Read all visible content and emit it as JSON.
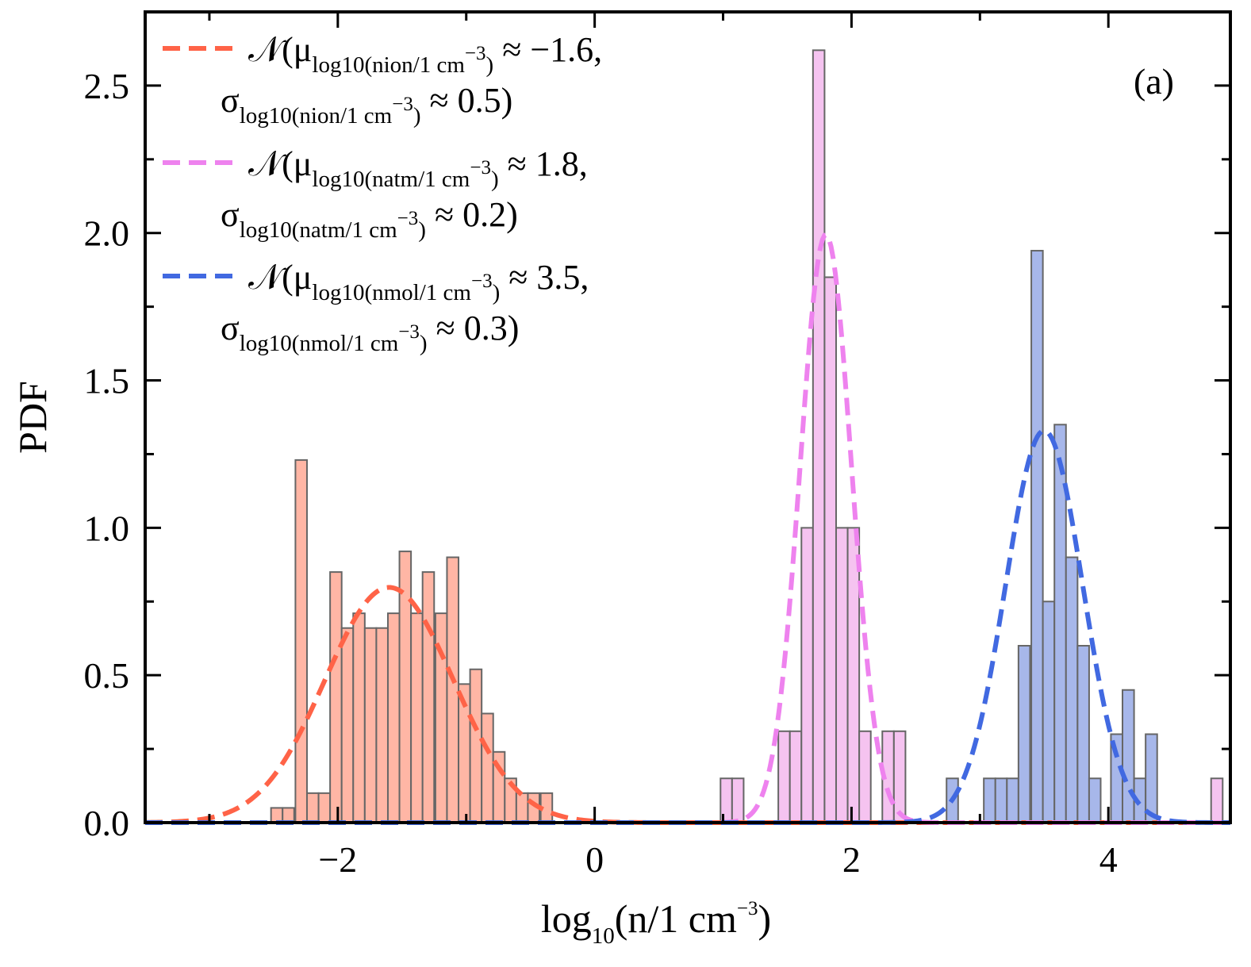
{
  "chart_data": {
    "type": "bar",
    "subtype": "histogram-with-gaussian-fits",
    "panel_label": "(a)",
    "xlabel": {
      "base": "log",
      "sub": "10",
      "main": "(n/1 cm",
      "sup": "−3",
      "close": ")"
    },
    "ylabel": "PDF",
    "xlim": [
      -3.5,
      4.95
    ],
    "ylim": [
      0,
      2.75
    ],
    "x_ticks": [
      -2,
      0,
      2,
      4
    ],
    "x_tick_labels": [
      "−2",
      "0",
      "2",
      "4"
    ],
    "y_ticks": [
      0.0,
      0.5,
      1.0,
      1.5,
      2.0,
      2.5
    ],
    "y_tick_labels": [
      "0.0",
      "0.5",
      "1.0",
      "1.5",
      "2.0",
      "2.5"
    ],
    "legend_position": "top-left",
    "series": [
      {
        "key": "ion",
        "color": "#ff6347",
        "fill": "#ffb6a5",
        "gaussian": {
          "mu": -1.6,
          "sigma": 0.5
        },
        "legend_line1": {
          "prefix": "𝒩(μ",
          "sub": "log10(nion/1 cm",
          "sub_sup": "−3",
          "sub_close": ")",
          "suffix": " ≈ −1.6,"
        },
        "legend_line2": {
          "prefix": "σ",
          "sub": "log10(nion/1 cm",
          "sub_sup": "−3",
          "sub_close": ")",
          "suffix": " ≈ 0.5)"
        },
        "bin_width": 0.09,
        "bins": [
          [
            -2.52,
            0.05
          ],
          [
            -2.43,
            0.05
          ],
          [
            -2.33,
            1.23
          ],
          [
            -2.24,
            0.1
          ],
          [
            -2.15,
            0.1
          ],
          [
            -2.06,
            0.85
          ],
          [
            -1.97,
            0.66
          ],
          [
            -1.88,
            0.71
          ],
          [
            -1.79,
            0.66
          ],
          [
            -1.7,
            0.66
          ],
          [
            -1.61,
            0.71
          ],
          [
            -1.52,
            0.92
          ],
          [
            -1.43,
            0.71
          ],
          [
            -1.34,
            0.85
          ],
          [
            -1.24,
            0.71
          ],
          [
            -1.15,
            0.9
          ],
          [
            -1.06,
            0.47
          ],
          [
            -0.97,
            0.52
          ],
          [
            -0.88,
            0.37
          ],
          [
            -0.79,
            0.24
          ],
          [
            -0.7,
            0.15
          ],
          [
            -0.61,
            0.1
          ],
          [
            -0.52,
            0.1
          ],
          [
            -0.42,
            0.1
          ]
        ]
      },
      {
        "key": "atm",
        "color": "#ee82ee",
        "fill": "#f5c3f0",
        "gaussian": {
          "mu": 1.8,
          "sigma": 0.2
        },
        "legend_line1": {
          "prefix": "𝒩(μ",
          "sub": "log10(natm/1 cm",
          "sub_sup": "−3",
          "sub_close": ")",
          "suffix": " ≈ 1.8,"
        },
        "legend_line2": {
          "prefix": "σ",
          "sub": "log10(natm/1 cm",
          "sub_sup": "−3",
          "sub_close": ")",
          "suffix": " ≈ 0.2)"
        },
        "bin_width": 0.09,
        "bins": [
          [
            0.98,
            0.15
          ],
          [
            1.07,
            0.15
          ],
          [
            1.43,
            0.31
          ],
          [
            1.52,
            0.31
          ],
          [
            1.61,
            1.0
          ],
          [
            1.7,
            2.62
          ],
          [
            1.79,
            1.85
          ],
          [
            1.88,
            1.0
          ],
          [
            1.97,
            1.0
          ],
          [
            2.06,
            0.31
          ],
          [
            2.24,
            0.31
          ],
          [
            2.33,
            0.31
          ],
          [
            4.8,
            0.15
          ]
        ]
      },
      {
        "key": "mol",
        "color": "#4169e1",
        "fill": "#a7b7ea",
        "gaussian": {
          "mu": 3.5,
          "sigma": 0.3
        },
        "legend_line1": {
          "prefix": "𝒩(μ",
          "sub": "log10(nmol/1 cm",
          "sub_sup": "−3",
          "sub_close": ")",
          "suffix": " ≈ 3.5,"
        },
        "legend_line2": {
          "prefix": "σ",
          "sub": "log10(nmol/1 cm",
          "sub_sup": "−3",
          "sub_close": ")",
          "suffix": " ≈ 0.3)"
        },
        "bin_width": 0.09,
        "bins": [
          [
            2.74,
            0.15
          ],
          [
            3.03,
            0.15
          ],
          [
            3.12,
            0.15
          ],
          [
            3.21,
            0.15
          ],
          [
            3.3,
            0.6
          ],
          [
            3.4,
            1.94
          ],
          [
            3.49,
            0.75
          ],
          [
            3.58,
            1.35
          ],
          [
            3.67,
            0.9
          ],
          [
            3.76,
            0.6
          ],
          [
            3.85,
            0.15
          ],
          [
            4.02,
            0.3
          ],
          [
            4.11,
            0.45
          ],
          [
            4.2,
            0.15
          ],
          [
            4.29,
            0.3
          ]
        ]
      }
    ]
  }
}
